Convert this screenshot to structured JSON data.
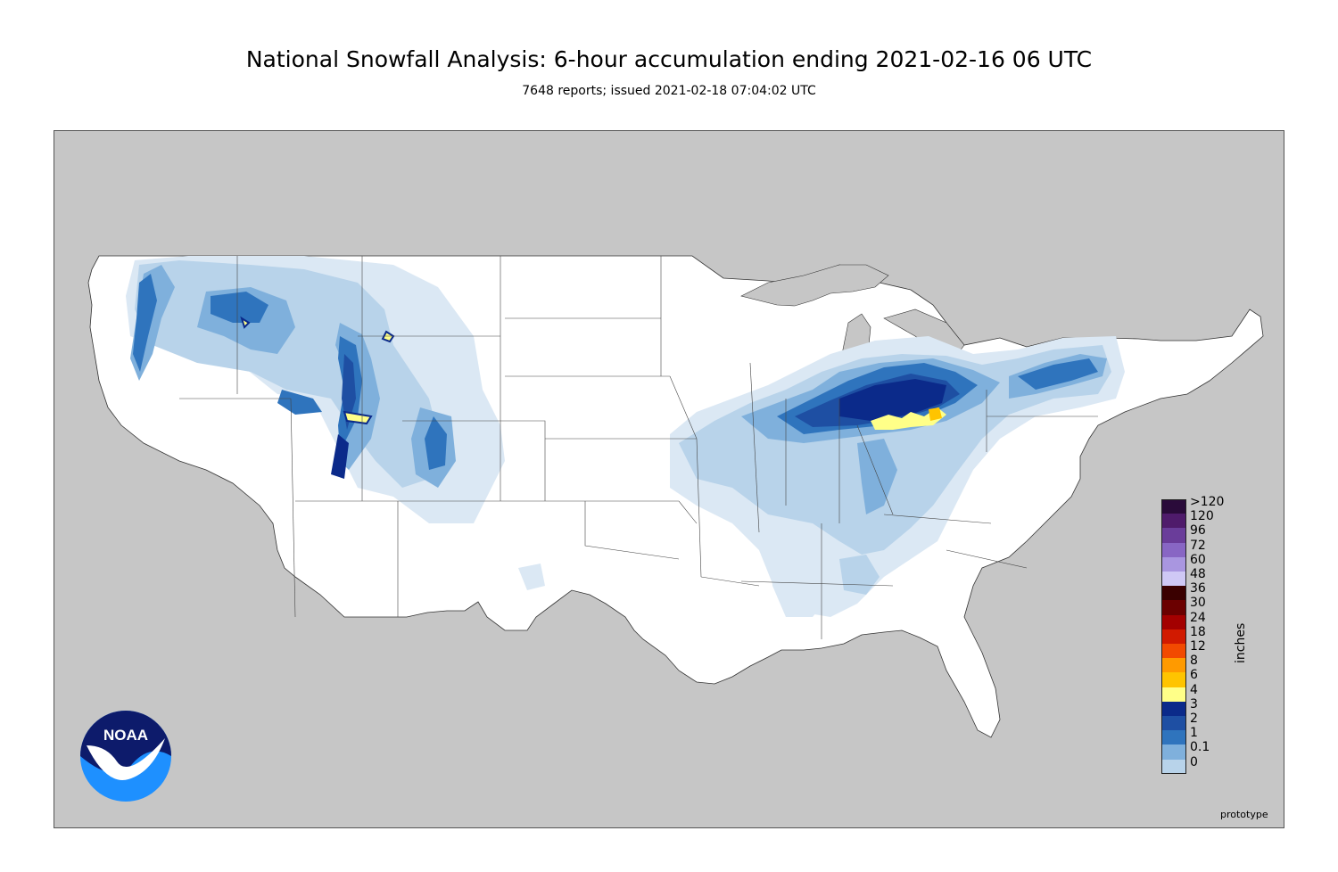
{
  "header": {
    "title": "National Snowfall Analysis: 6-hour accumulation ending 2021-02-16 06 UTC",
    "subtitle": "7648 reports; issued 2021-02-18 07:04:02 UTC"
  },
  "legend": {
    "unit": "inches",
    "levels": [
      {
        "label": ">120",
        "color": "#2a0b3a"
      },
      {
        "label": "120",
        "color": "#4f1b6b"
      },
      {
        "label": "96",
        "color": "#6a3d9a"
      },
      {
        "label": "72",
        "color": "#8866c4"
      },
      {
        "label": "60",
        "color": "#a996e0"
      },
      {
        "label": "48",
        "color": "#cfc8f5"
      },
      {
        "label": "36",
        "color": "#3a0000"
      },
      {
        "label": "30",
        "color": "#6b0000"
      },
      {
        "label": "24",
        "color": "#a30000"
      },
      {
        "label": "18",
        "color": "#d11a00"
      },
      {
        "label": "12",
        "color": "#f24a00"
      },
      {
        "label": "8",
        "color": "#ff9a00"
      },
      {
        "label": "6",
        "color": "#ffc400"
      },
      {
        "label": "4",
        "color": "#ffff88"
      },
      {
        "label": "3",
        "color": "#0b2a8a"
      },
      {
        "label": "2",
        "color": "#1e4fa3"
      },
      {
        "label": "1",
        "color": "#2f74bd"
      },
      {
        "label": "0.1",
        "color": "#7fb0dc"
      },
      {
        "label": "0",
        "color": "#b8d3ea"
      }
    ],
    "base_color": "#e6eff8",
    "zero_color": "#ffffff"
  },
  "logo": {
    "text": "NOAA"
  },
  "footer": {
    "note": "prototype"
  },
  "colors": {
    "ocean_land_outside": "#c6c6c6",
    "conus": "#ffffff"
  }
}
